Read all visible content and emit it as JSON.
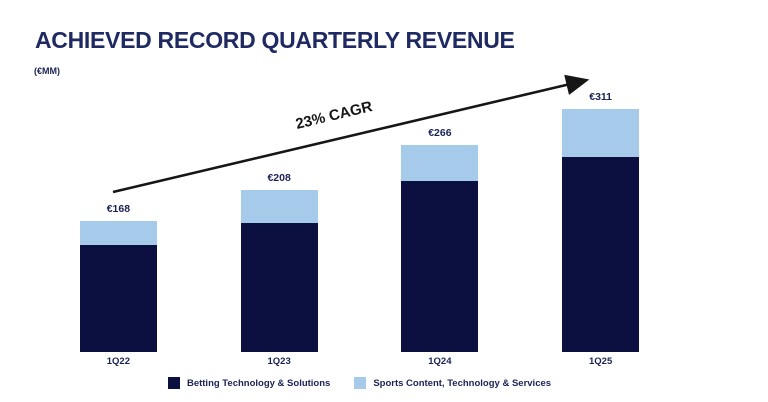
{
  "header": {
    "title": "ACHIEVED RECORD QUARTERLY REVENUE",
    "unit_label": "(€MM)"
  },
  "annotation": {
    "cagr_label": "23% CAGR"
  },
  "colors": {
    "background": "#ffffff",
    "title_text": "#1f2a63",
    "label_text": "#1b2356",
    "arrow": "#161616",
    "betting_navy": "#0c1040",
    "sports_light_blue": "#a6cae9"
  },
  "chart_data": {
    "type": "bar",
    "stacked": true,
    "title": "ACHIEVED RECORD QUARTERLY REVENUE",
    "unit": "€MM",
    "categories": [
      "1Q22",
      "1Q23",
      "1Q24",
      "1Q25"
    ],
    "totals": [
      168,
      208,
      266,
      311
    ],
    "total_labels": [
      "€168",
      "€208",
      "€266",
      "€311"
    ],
    "series": [
      {
        "name": "Betting Technology & Solutions",
        "color": "#0c1040",
        "values": [
          137,
          165,
          219,
          250
        ]
      },
      {
        "name": "Sports Content, Technology & Services",
        "color": "#a6cae9",
        "values": [
          31,
          43,
          47,
          61
        ]
      }
    ],
    "annotation": "23% CAGR",
    "legend_position": "bottom",
    "grid": false,
    "axis_lines": false,
    "ylim": [
      0,
      384
    ]
  }
}
